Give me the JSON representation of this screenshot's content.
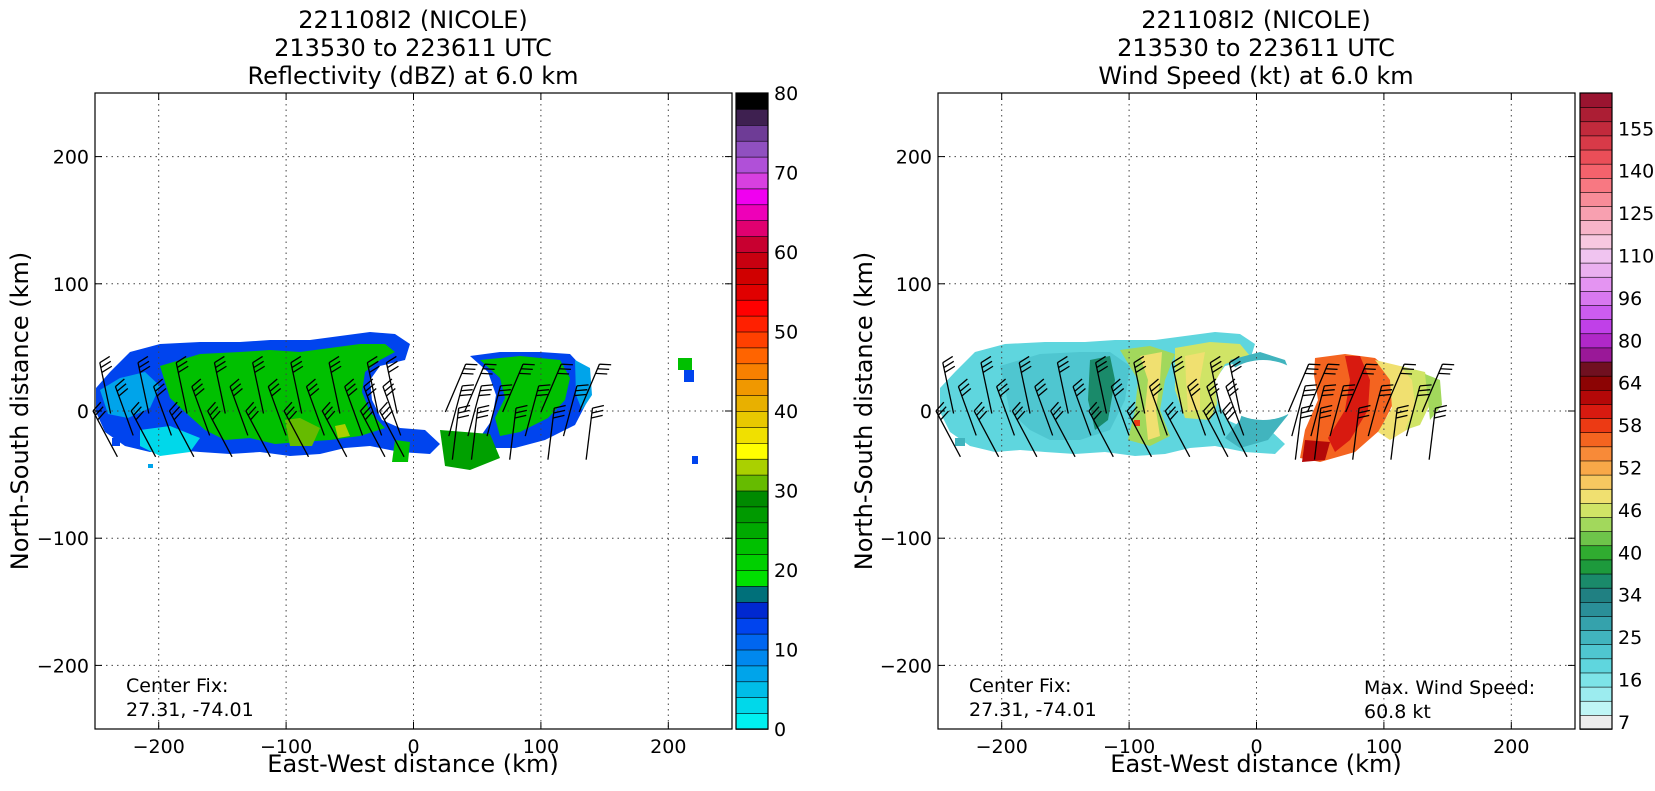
{
  "chart_data": [
    {
      "type": "heatmap",
      "title_lines": [
        "221108I2 (NICOLE)",
        "213530 to 223611 UTC",
        "Reflectivity (dBZ) at 6.0 km"
      ],
      "xlabel": "East-West distance (km)",
      "ylabel": "North-South distance (km)",
      "xlim": [
        -250,
        250
      ],
      "ylim": [
        -250,
        250
      ],
      "xticks": [
        -200,
        -100,
        0,
        100,
        200
      ],
      "yticks": [
        -200,
        -100,
        0,
        100,
        200
      ],
      "xtick_labels": [
        "−200",
        "−100",
        "0",
        "100",
        "200"
      ],
      "ytick_labels": [
        "−200",
        "−100",
        "0",
        "100",
        "200"
      ],
      "grid": true,
      "annotation_left": [
        "Center Fix:",
        "27.31, -74.01"
      ],
      "annotation_right": [],
      "colorbar": {
        "min": 0,
        "max": 80,
        "tick_values": [
          0,
          10,
          20,
          30,
          40,
          50,
          60,
          70,
          80
        ],
        "colors": [
          "#00f0f0",
          "#00d8ea",
          "#00bde8",
          "#00a4ea",
          "#0088ee",
          "#0066f0",
          "#0044ee",
          "#0028d0",
          "#00707a",
          "#00e000",
          "#00d000",
          "#00c000",
          "#00aa00",
          "#009a00",
          "#008a00",
          "#66bb00",
          "#aad000",
          "#ffff00",
          "#f0e000",
          "#e8c800",
          "#e8b000",
          "#f09800",
          "#f88000",
          "#ff6400",
          "#ff4000",
          "#ff2000",
          "#ff0000",
          "#e00000",
          "#d00000",
          "#c80010",
          "#c80030",
          "#e00070",
          "#ee00b8",
          "#f000f0",
          "#d840e0",
          "#b050d8",
          "#9050c0",
          "#6e3c96",
          "#3e2050",
          "#000000"
        ]
      },
      "field_class": "reflectivity"
    },
    {
      "type": "heatmap",
      "title_lines": [
        "221108I2 (NICOLE)",
        "213530 to 223611 UTC",
        "Wind Speed (kt) at 6.0 km"
      ],
      "xlabel": "East-West distance (km)",
      "ylabel": "North-South distance (km)",
      "xlim": [
        -250,
        250
      ],
      "ylim": [
        -250,
        250
      ],
      "xticks": [
        -200,
        -100,
        0,
        100,
        200
      ],
      "yticks": [
        -200,
        -100,
        0,
        100,
        200
      ],
      "xtick_labels": [
        "−200",
        "−100",
        "0",
        "100",
        "200"
      ],
      "ytick_labels": [
        "−200",
        "−100",
        "0",
        "100",
        "200"
      ],
      "grid": true,
      "annotation_left": [
        "Center Fix:",
        "27.31, -74.01"
      ],
      "annotation_right": [
        "Max. Wind Speed:",
        "60.8 kt"
      ],
      "colorbar": {
        "tick_labels": [
          "7",
          "16",
          "25",
          "34",
          "40",
          "46",
          "52",
          "58",
          "64",
          "80",
          "96",
          "110",
          "125",
          "140",
          "155"
        ],
        "tick_band_index": [
          0,
          3,
          6,
          9,
          12,
          15,
          18,
          21,
          24,
          27,
          30,
          33,
          36,
          39,
          42
        ],
        "colors": [
          "#ececec",
          "#bff5f5",
          "#9cecef",
          "#7de4e8",
          "#5fd6de",
          "#4fc6d0",
          "#41b4be",
          "#35a2ac",
          "#2a8f98",
          "#208082",
          "#1a8a6a",
          "#1d9a3c",
          "#30ac30",
          "#6ec44a",
          "#a2d85c",
          "#d0e466",
          "#f0e070",
          "#f6c860",
          "#f8a848",
          "#f88a38",
          "#f46420",
          "#ec3a14",
          "#d81a10",
          "#b40808",
          "#8c0404",
          "#701020",
          "#9a1898",
          "#b028c8",
          "#c040e8",
          "#cc5cf0",
          "#d878f0",
          "#e494f2",
          "#eab0f0",
          "#f0c4f0",
          "#f8c8e0",
          "#f8b4c8",
          "#f8a0b0",
          "#f88c98",
          "#f87882",
          "#f4626c",
          "#ea4e58",
          "#d83a48",
          "#c22a3c",
          "#ac1e34",
          "#9a1430"
        ]
      },
      "field_class": "windspeed"
    }
  ]
}
